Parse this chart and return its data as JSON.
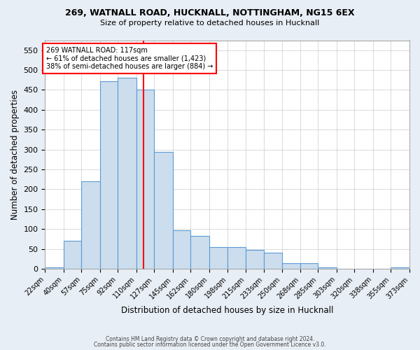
{
  "title_line1": "269, WATNALL ROAD, HUCKNALL, NOTTINGHAM, NG15 6EX",
  "title_line2": "Size of property relative to detached houses in Hucknall",
  "xlabel": "Distribution of detached houses by size in Hucknall",
  "ylabel": "Number of detached properties",
  "footer_line1": "Contains HM Land Registry data © Crown copyright and database right 2024.",
  "footer_line2": "Contains public sector information licensed under the Open Government Licence v3.0.",
  "bin_labels": [
    "22sqm",
    "40sqm",
    "57sqm",
    "75sqm",
    "92sqm",
    "110sqm",
    "127sqm",
    "145sqm",
    "162sqm",
    "180sqm",
    "198sqm",
    "215sqm",
    "233sqm",
    "250sqm",
    "268sqm",
    "285sqm",
    "303sqm",
    "320sqm",
    "338sqm",
    "355sqm",
    "373sqm"
  ],
  "bin_edges": [
    22,
    40,
    57,
    75,
    92,
    110,
    127,
    145,
    162,
    180,
    198,
    215,
    233,
    250,
    268,
    285,
    303,
    320,
    338,
    355,
    373
  ],
  "bar_heights": [
    3,
    70,
    220,
    472,
    480,
    450,
    295,
    97,
    82,
    55,
    55,
    47,
    40,
    14,
    14,
    4,
    0,
    0,
    0,
    4,
    0
  ],
  "bar_fill_color": "#ccdded",
  "bar_edge_color": "#5b9bd5",
  "property_value": 117,
  "vline_color": "red",
  "annotation_text_line1": "269 WATNALL ROAD: 117sqm",
  "annotation_text_line2": "← 61% of detached houses are smaller (1,423)",
  "annotation_text_line3": "38% of semi-detached houses are larger (884) →",
  "annotation_box_color": "white",
  "annotation_box_edge": "red",
  "ylim": [
    0,
    575
  ],
  "yticks": [
    0,
    50,
    100,
    150,
    200,
    250,
    300,
    350,
    400,
    450,
    500,
    550
  ],
  "background_color": "#e8eef5",
  "plot_bg_color": "white",
  "grid_color": "#cccccc"
}
